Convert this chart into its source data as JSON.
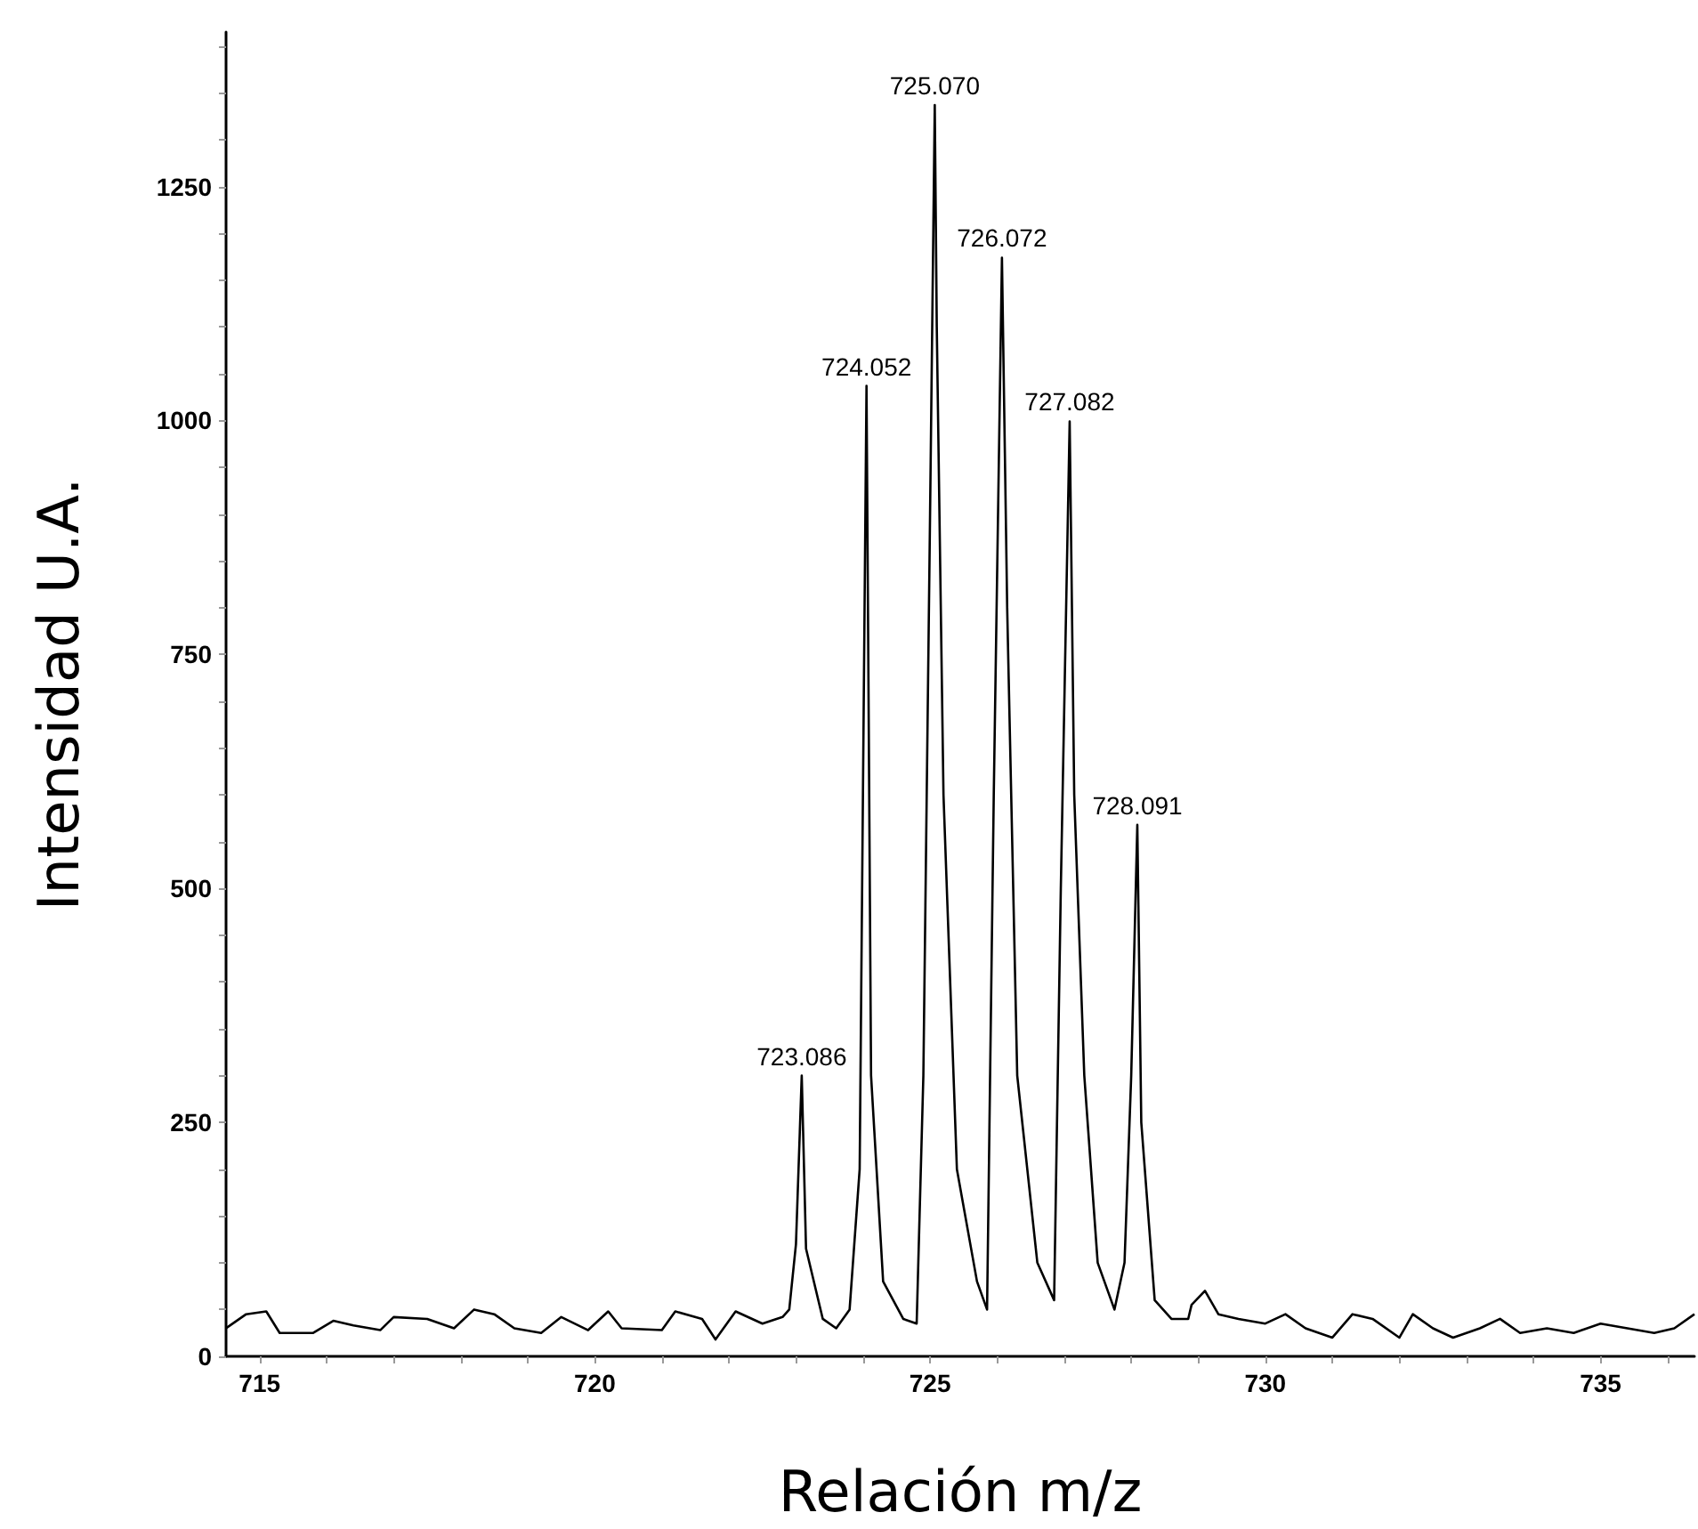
{
  "chart_data": {
    "type": "line",
    "xlabel": "Relación m/z",
    "ylabel": "Intensidad U.A.",
    "xlim": [
      714.5,
      736.4
    ],
    "xticks": [
      715,
      {
        "value": 716,
        "label": null
      },
      {
        "value": 717,
        "label": null
      },
      {
        "value": 718,
        "label": null
      },
      {
        "value": 719,
        "label": null
      },
      720,
      {
        "value": 721,
        "label": null
      },
      {
        "value": 722,
        "label": null
      },
      {
        "value": 723,
        "label": null
      },
      {
        "value": 724,
        "label": null
      },
      725,
      {
        "value": 726,
        "label": null
      },
      {
        "value": 727,
        "label": null
      },
      {
        "value": 728,
        "label": null
      },
      {
        "value": 729,
        "label": null
      },
      730,
      {
        "value": 731,
        "label": null
      },
      {
        "value": 732,
        "label": null
      },
      {
        "value": 733,
        "label": null
      },
      {
        "value": 734,
        "label": null
      },
      735,
      {
        "value": 736,
        "label": null
      }
    ],
    "ylim": [
      0,
      1415
    ],
    "yticks": [
      0,
      {
        "value": 50,
        "label": null
      },
      {
        "value": 100,
        "label": null
      },
      {
        "value": 150,
        "label": null
      },
      {
        "value": 200,
        "label": null
      },
      250,
      {
        "value": 300,
        "label": null
      },
      {
        "value": 350,
        "label": null
      },
      {
        "value": 400,
        "label": null
      },
      {
        "value": 450,
        "label": null
      },
      500,
      {
        "value": 550,
        "label": null
      },
      {
        "value": 600,
        "label": null
      },
      {
        "value": 650,
        "label": null
      },
      {
        "value": 700,
        "label": null
      },
      750,
      {
        "value": 800,
        "label": null
      },
      {
        "value": 850,
        "label": null
      },
      {
        "value": 900,
        "label": null
      },
      {
        "value": 950,
        "label": null
      },
      1000,
      {
        "value": 1050,
        "label": null
      },
      {
        "value": 1100,
        "label": null
      },
      {
        "value": 1150,
        "label": null
      },
      {
        "value": 1200,
        "label": null
      },
      1250,
      {
        "value": 1300,
        "label": null
      },
      {
        "value": 1350,
        "label": null
      },
      {
        "value": 1400,
        "label": null
      }
    ],
    "marker": "none",
    "line_style": "solid",
    "series": [
      {
        "color": "#000000",
        "x": [
          714.5,
          714.8,
          715.1,
          715.3,
          715.8,
          716.1,
          716.4,
          716.8,
          717.0,
          717.5,
          717.9,
          718.2,
          718.5,
          718.8,
          719.2,
          719.5,
          719.9,
          720.2,
          720.4,
          721.0,
          721.2,
          721.6,
          721.8,
          722.1,
          722.5,
          722.8,
          722.9,
          723.0,
          723.086,
          723.15,
          723.4,
          723.6,
          723.8,
          723.95,
          724.052,
          724.12,
          724.3,
          724.6,
          724.8,
          724.9,
          725.0,
          725.07,
          725.1,
          725.2,
          725.4,
          725.7,
          725.85,
          725.95,
          726.072,
          726.15,
          726.3,
          726.6,
          726.85,
          726.95,
          727.082,
          727.15,
          727.3,
          727.5,
          727.75,
          727.9,
          728.0,
          728.091,
          728.15,
          728.35,
          728.6,
          728.85,
          728.9,
          729.1,
          729.3,
          729.6,
          730.0,
          730.3,
          730.6,
          731.0,
          731.3,
          731.6,
          732.0,
          732.2,
          732.5,
          732.8,
          733.2,
          733.5,
          733.8,
          734.2,
          734.6,
          735.0,
          735.4,
          735.8,
          736.1,
          736.4
        ],
        "values": [
          30,
          45,
          48,
          25,
          25,
          38,
          33,
          28,
          42,
          40,
          30,
          50,
          45,
          30,
          25,
          42,
          28,
          48,
          30,
          28,
          48,
          40,
          18,
          48,
          35,
          42,
          50,
          120,
          300,
          115,
          40,
          30,
          50,
          200,
          1037,
          300,
          80,
          40,
          35,
          300,
          900,
          1337,
          1100,
          600,
          200,
          80,
          50,
          600,
          1174,
          800,
          300,
          100,
          60,
          500,
          999,
          600,
          300,
          100,
          50,
          100,
          300,
          568,
          250,
          60,
          40,
          40,
          55,
          70,
          45,
          40,
          35,
          45,
          30,
          20,
          45,
          40,
          20,
          45,
          30,
          20,
          30,
          40,
          25,
          30,
          25,
          35,
          30,
          25,
          30,
          45
        ]
      }
    ],
    "annotations": [
      {
        "text": "723.086",
        "x": 723.086,
        "y": 300
      },
      {
        "text": "724.052",
        "x": 724.052,
        "y": 1037
      },
      {
        "text": "725.070",
        "x": 725.07,
        "y": 1337
      },
      {
        "text": "726.072",
        "x": 726.072,
        "y": 1174
      },
      {
        "text": "727.082",
        "x": 727.082,
        "y": 999
      },
      {
        "text": "728.091",
        "x": 728.091,
        "y": 568
      }
    ]
  }
}
